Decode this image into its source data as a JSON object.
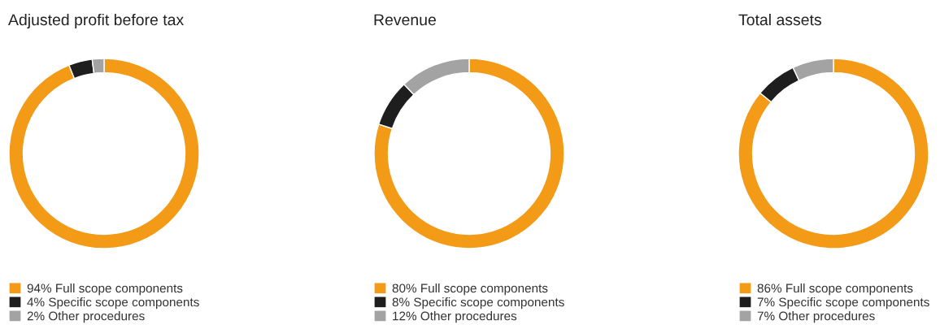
{
  "chart_data": [
    {
      "type": "donut",
      "title": "Adjusted profit before tax",
      "categories": [
        "Full scope components",
        "Specific scope components",
        "Other procedures"
      ],
      "values": [
        94,
        4,
        2
      ],
      "value_labels": [
        "94%",
        "4%",
        "2%"
      ],
      "colors": [
        "#f39a17",
        "#1e1e1e",
        "#a3a3a3"
      ],
      "legend": "bottom"
    },
    {
      "type": "donut",
      "title": "Revenue",
      "categories": [
        "Full scope components",
        "Specific scope components",
        "Other procedures"
      ],
      "values": [
        80,
        8,
        12
      ],
      "value_labels": [
        "80%",
        "8%",
        "12%"
      ],
      "colors": [
        "#f39a17",
        "#1e1e1e",
        "#a3a3a3"
      ],
      "legend": "bottom"
    },
    {
      "type": "donut",
      "title": "Total assets",
      "categories": [
        "Full scope components",
        "Specific scope components",
        "Other procedures"
      ],
      "values": [
        86,
        7,
        7
      ],
      "value_labels": [
        "86%",
        "7%",
        "7%"
      ],
      "colors": [
        "#f39a17",
        "#1e1e1e",
        "#a3a3a3"
      ],
      "legend": "bottom"
    }
  ]
}
